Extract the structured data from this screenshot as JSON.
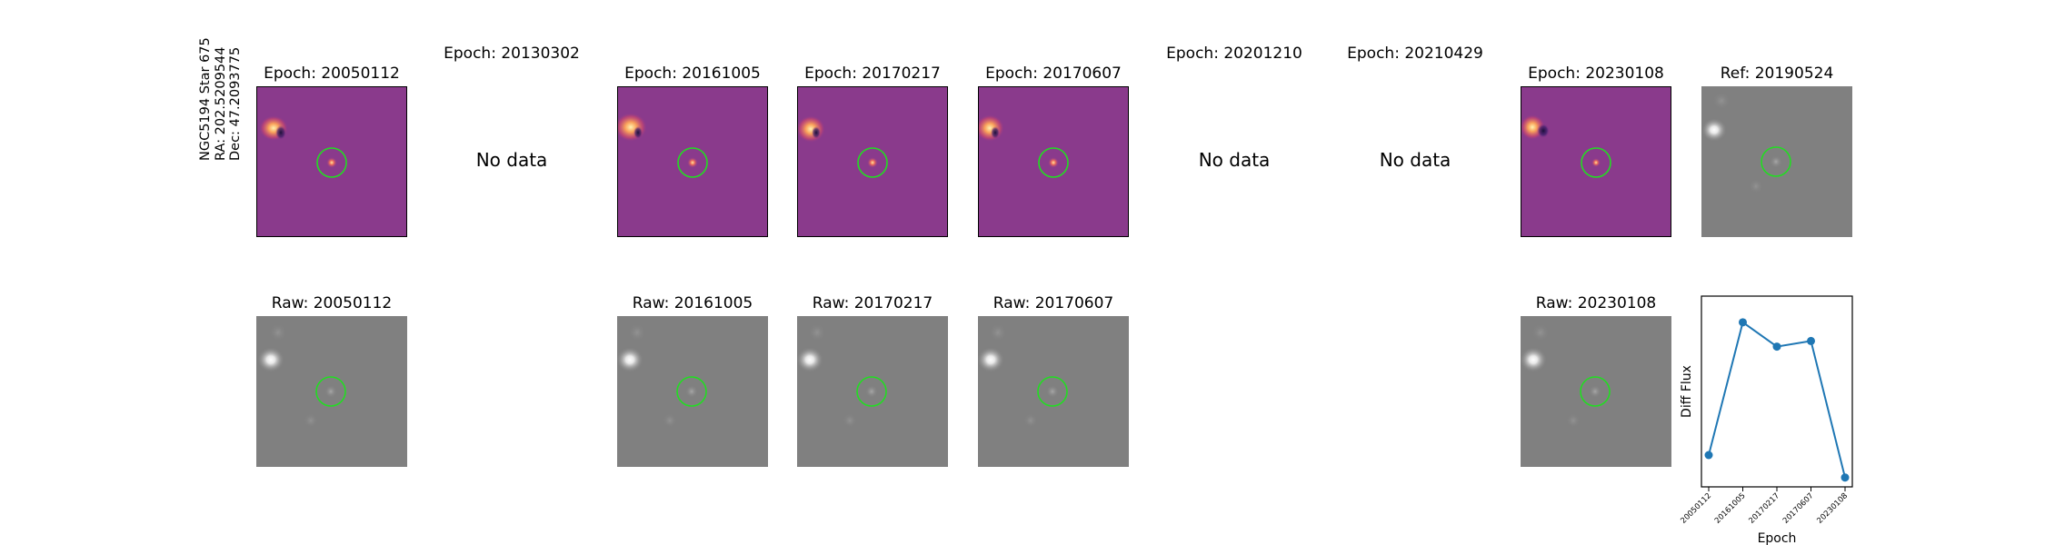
{
  "target": {
    "name": "NGC5194 Star 675",
    "ra": "RA: 202.5209544",
    "dec": "Dec: 47.2093775"
  },
  "diff_row": [
    {
      "title": "Epoch: 20050112",
      "available": true
    },
    {
      "title": "Epoch: 20130302",
      "available": false,
      "no_data_text": "No data"
    },
    {
      "title": "Epoch: 20161005",
      "available": true
    },
    {
      "title": "Epoch: 20170217",
      "available": true
    },
    {
      "title": "Epoch: 20170607",
      "available": true
    },
    {
      "title": "Epoch: 20201210",
      "available": false,
      "no_data_text": "No data"
    },
    {
      "title": "Epoch: 20210429",
      "available": false,
      "no_data_text": "No data"
    },
    {
      "title": "Epoch: 20230108",
      "available": true
    },
    {
      "title": "Ref: 20190524",
      "available": true,
      "reference": true
    }
  ],
  "raw_row": [
    {
      "title": "Raw: 20050112",
      "column": 0
    },
    {
      "title": "Raw: 20161005",
      "column": 2
    },
    {
      "title": "Raw: 20170217",
      "column": 3
    },
    {
      "title": "Raw: 20170607",
      "column": 4
    },
    {
      "title": "Raw: 20230108",
      "column": 7
    }
  ],
  "colors": {
    "diff_background": "#8a3a8c",
    "raw_background": "#808080",
    "aperture": "#22dd22",
    "series": "#1f77b4"
  },
  "chart_data": {
    "type": "line",
    "x": [
      "20050112",
      "20161005",
      "20170217",
      "20170607",
      "20230108"
    ],
    "values": [
      0.12,
      0.83,
      0.7,
      0.73,
      0.0
    ],
    "xlabel": "Epoch",
    "ylabel": "Diff Flux",
    "ylim": [
      -0.05,
      0.97
    ],
    "grid": false,
    "legend": "none",
    "marker": "circle"
  }
}
